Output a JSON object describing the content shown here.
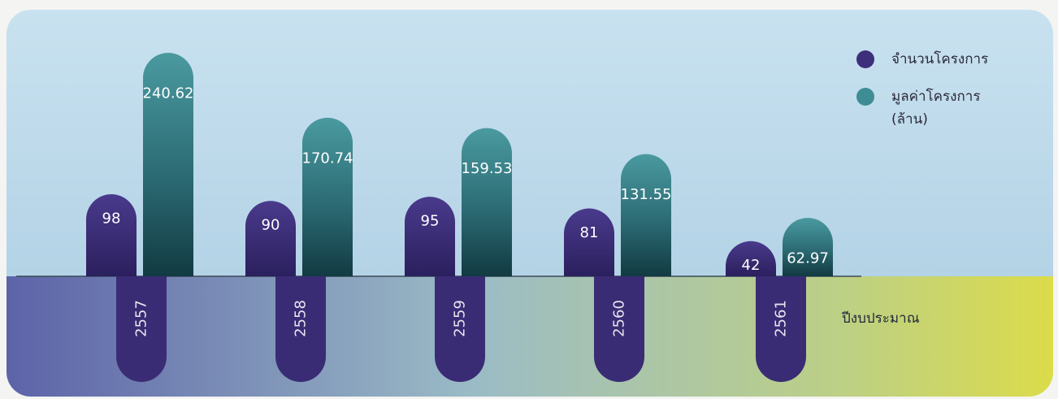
{
  "chart_data": {
    "type": "bar",
    "categories": [
      "2557",
      "2558",
      "2559",
      "2560",
      "2561"
    ],
    "series": [
      {
        "name": "จำนวนโครงการ",
        "values": [
          98,
          90,
          95,
          81,
          42
        ],
        "color": "#3d2f7a"
      },
      {
        "name": "มูลค่าโครงการ (ล้าน)",
        "values": [
          240.62,
          170.74,
          159.53,
          131.55,
          62.97
        ],
        "color": "#3f8d94"
      }
    ],
    "data_labels": {
      "count": [
        "98",
        "90",
        "95",
        "81",
        "42"
      ],
      "value": [
        "240.62",
        "170.74",
        "159.53",
        "131.55",
        "62.97"
      ]
    },
    "xlabel": "ปีงบประมาณ",
    "legend": {
      "placement": "top-right",
      "count_label": "จำนวนโครงการ",
      "value_label_line1": "มูลค่าโครงการ",
      "value_label_line2": "(ล้าน)"
    },
    "grid": false,
    "colors": {
      "count": "#3d2f7a",
      "value_top": "#3f8d94",
      "value_bottom": "#16424a",
      "sky": "#bcd8ea",
      "ground_left": "#5a5fa6",
      "ground_right": "#d8d848"
    }
  }
}
